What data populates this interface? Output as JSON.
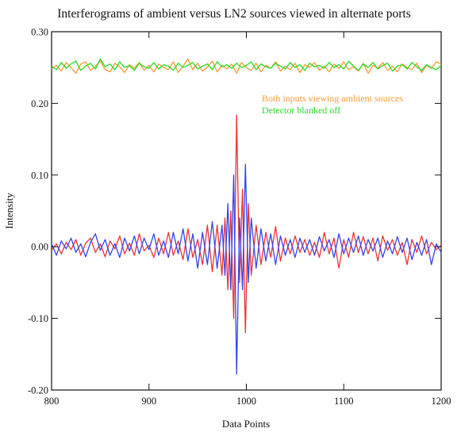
{
  "chart_data": {
    "type": "line",
    "title": "Interferograms of ambient versus LN2 sources viewed in alternate ports",
    "xlabel": "Data Points",
    "ylabel": "Intensity",
    "xlim": [
      800,
      1200
    ],
    "ylim": [
      -0.2,
      0.3
    ],
    "x_ticks": [
      800,
      900,
      1000,
      1100,
      1200
    ],
    "x_tick_labels": [
      "800",
      "900",
      "1000",
      "1100",
      "1200"
    ],
    "y_ticks": [
      -0.2,
      -0.1,
      0.0,
      0.1,
      0.2,
      0.3
    ],
    "y_tick_labels": [
      "-0.20",
      "-0.10",
      "0.00",
      "0.10",
      "0.20",
      "0.30"
    ],
    "grid": false,
    "legend_position": "upper-right",
    "legend": [
      {
        "label": "Both inputs viewing ambient sources",
        "color": "#ff9933"
      },
      {
        "label": "Detector blanked off",
        "color": "#22dd22"
      }
    ],
    "series": [
      {
        "name": "Both inputs viewing ambient sources",
        "color": "#ff9933",
        "x": [
          800,
          805,
          810,
          815,
          820,
          825,
          830,
          835,
          840,
          845,
          850,
          855,
          860,
          865,
          870,
          875,
          880,
          885,
          890,
          895,
          900,
          905,
          910,
          915,
          920,
          925,
          930,
          935,
          940,
          945,
          950,
          955,
          960,
          965,
          970,
          975,
          980,
          985,
          990,
          995,
          1000,
          1005,
          1010,
          1015,
          1020,
          1025,
          1030,
          1035,
          1040,
          1045,
          1050,
          1055,
          1060,
          1065,
          1070,
          1075,
          1080,
          1085,
          1090,
          1095,
          1100,
          1105,
          1110,
          1115,
          1120,
          1125,
          1130,
          1135,
          1140,
          1145,
          1150,
          1155,
          1160,
          1165,
          1170,
          1175,
          1180,
          1185,
          1190,
          1195,
          1200
        ],
        "y": [
          0.248,
          0.253,
          0.245,
          0.257,
          0.25,
          0.242,
          0.255,
          0.258,
          0.246,
          0.252,
          0.259,
          0.247,
          0.244,
          0.256,
          0.251,
          0.243,
          0.254,
          0.249,
          0.257,
          0.246,
          0.253,
          0.244,
          0.255,
          0.25,
          0.247,
          0.258,
          0.243,
          0.252,
          0.262,
          0.247,
          0.256,
          0.245,
          0.251,
          0.259,
          0.244,
          0.253,
          0.248,
          0.255,
          0.242,
          0.257,
          0.25,
          0.246,
          0.256,
          0.244,
          0.253,
          0.249,
          0.258,
          0.245,
          0.252,
          0.247,
          0.256,
          0.243,
          0.254,
          0.25,
          0.257,
          0.246,
          0.252,
          0.244,
          0.255,
          0.249,
          0.258,
          0.247,
          0.251,
          0.245,
          0.256,
          0.242,
          0.253,
          0.249,
          0.257,
          0.246,
          0.252,
          0.244,
          0.255,
          0.25,
          0.247,
          0.256,
          0.243,
          0.253,
          0.249,
          0.258,
          0.255
        ]
      },
      {
        "name": "Detector blanked off",
        "color": "#22dd22",
        "x": [
          800,
          805,
          810,
          815,
          820,
          825,
          830,
          835,
          840,
          845,
          850,
          855,
          860,
          865,
          870,
          875,
          880,
          885,
          890,
          895,
          900,
          905,
          910,
          915,
          920,
          925,
          930,
          935,
          940,
          945,
          950,
          955,
          960,
          965,
          970,
          975,
          980,
          985,
          990,
          995,
          1000,
          1005,
          1010,
          1015,
          1020,
          1025,
          1030,
          1035,
          1040,
          1045,
          1050,
          1055,
          1060,
          1065,
          1070,
          1075,
          1080,
          1085,
          1090,
          1095,
          1100,
          1105,
          1110,
          1115,
          1120,
          1125,
          1130,
          1135,
          1140,
          1145,
          1150,
          1155,
          1160,
          1165,
          1170,
          1175,
          1180,
          1185,
          1190,
          1195,
          1200
        ],
        "y": [
          0.252,
          0.247,
          0.257,
          0.249,
          0.255,
          0.259,
          0.246,
          0.252,
          0.256,
          0.248,
          0.262,
          0.251,
          0.255,
          0.247,
          0.258,
          0.25,
          0.253,
          0.246,
          0.256,
          0.251,
          0.249,
          0.257,
          0.248,
          0.254,
          0.252,
          0.246,
          0.256,
          0.25,
          0.253,
          0.257,
          0.248,
          0.252,
          0.255,
          0.247,
          0.258,
          0.251,
          0.254,
          0.249,
          0.256,
          0.25,
          0.253,
          0.258,
          0.247,
          0.255,
          0.251,
          0.249,
          0.256,
          0.252,
          0.248,
          0.257,
          0.25,
          0.254,
          0.246,
          0.256,
          0.251,
          0.253,
          0.249,
          0.257,
          0.25,
          0.254,
          0.248,
          0.259,
          0.252,
          0.246,
          0.255,
          0.25,
          0.257,
          0.248,
          0.253,
          0.256,
          0.245,
          0.252,
          0.254,
          0.248,
          0.257,
          0.251,
          0.246,
          0.254,
          0.25,
          0.247,
          0.253
        ]
      },
      {
        "name": "",
        "color": "#ee3333",
        "x": [
          800,
          805,
          810,
          815,
          820,
          825,
          830,
          835,
          840,
          845,
          850,
          855,
          860,
          865,
          870,
          875,
          880,
          885,
          890,
          895,
          900,
          905,
          910,
          915,
          920,
          925,
          930,
          935,
          940,
          945,
          950,
          955,
          960,
          965,
          970,
          975,
          978,
          981,
          984,
          987,
          990,
          993,
          996,
          999,
          1002,
          1005,
          1010,
          1015,
          1020,
          1025,
          1030,
          1035,
          1040,
          1045,
          1050,
          1055,
          1060,
          1065,
          1070,
          1075,
          1080,
          1085,
          1090,
          1095,
          1100,
          1105,
          1110,
          1115,
          1120,
          1125,
          1130,
          1135,
          1140,
          1145,
          1150,
          1155,
          1160,
          1165,
          1170,
          1175,
          1180,
          1185,
          1190,
          1195,
          1200
        ],
        "y": [
          -0.005,
          0.004,
          -0.01,
          0.006,
          -0.004,
          0.01,
          -0.012,
          0.005,
          0.012,
          -0.008,
          0.004,
          -0.014,
          0.008,
          -0.003,
          0.015,
          -0.01,
          0.005,
          -0.012,
          0.018,
          -0.006,
          0.002,
          -0.015,
          0.012,
          -0.01,
          0.02,
          -0.012,
          0.008,
          -0.018,
          0.025,
          -0.015,
          0.01,
          -0.025,
          0.03,
          -0.035,
          0.03,
          -0.04,
          0.04,
          -0.06,
          0.05,
          -0.1,
          0.184,
          -0.05,
          0.08,
          -0.12,
          0.06,
          -0.04,
          0.03,
          -0.025,
          0.02,
          -0.015,
          0.028,
          -0.02,
          0.012,
          -0.01,
          0.015,
          -0.008,
          0.01,
          -0.012,
          0.006,
          -0.015,
          0.02,
          -0.01,
          0.012,
          -0.03,
          0.01,
          -0.015,
          0.02,
          -0.008,
          0.014,
          -0.01,
          0.012,
          -0.02,
          0.015,
          -0.005,
          0.01,
          -0.012,
          0.006,
          -0.025,
          0.01,
          -0.008,
          0.015,
          -0.01,
          0.006,
          -0.004,
          0.002
        ]
      },
      {
        "name": "",
        "color": "#3344ee",
        "x": [
          800,
          805,
          810,
          815,
          820,
          825,
          830,
          835,
          840,
          845,
          850,
          855,
          860,
          865,
          870,
          875,
          880,
          885,
          890,
          895,
          900,
          905,
          910,
          915,
          920,
          925,
          930,
          935,
          940,
          945,
          950,
          955,
          960,
          965,
          970,
          975,
          978,
          981,
          984,
          987,
          990,
          993,
          996,
          999,
          1002,
          1005,
          1010,
          1015,
          1020,
          1025,
          1030,
          1035,
          1040,
          1045,
          1050,
          1055,
          1060,
          1065,
          1070,
          1075,
          1080,
          1085,
          1090,
          1095,
          1100,
          1105,
          1110,
          1115,
          1120,
          1125,
          1130,
          1135,
          1140,
          1145,
          1150,
          1155,
          1160,
          1165,
          1170,
          1175,
          1180,
          1185,
          1190,
          1195,
          1200
        ],
        "y": [
          0.004,
          -0.012,
          0.008,
          -0.003,
          0.012,
          -0.008,
          0.004,
          -0.014,
          0.006,
          0.018,
          -0.005,
          0.01,
          -0.012,
          0.004,
          -0.015,
          0.012,
          -0.006,
          0.015,
          -0.01,
          0.012,
          -0.004,
          0.018,
          -0.012,
          0.008,
          -0.015,
          0.02,
          -0.01,
          0.025,
          -0.02,
          0.018,
          -0.03,
          0.02,
          -0.025,
          0.035,
          -0.03,
          0.03,
          -0.04,
          0.06,
          -0.06,
          0.1,
          -0.178,
          0.04,
          -0.06,
          0.115,
          -0.05,
          0.04,
          -0.03,
          0.025,
          -0.02,
          0.018,
          -0.025,
          0.015,
          -0.012,
          0.01,
          -0.015,
          0.012,
          -0.008,
          0.01,
          -0.012,
          0.014,
          -0.006,
          0.01,
          -0.015,
          0.018,
          -0.01,
          0.012,
          -0.008,
          0.015,
          -0.012,
          0.01,
          -0.006,
          0.012,
          -0.015,
          0.008,
          -0.01,
          0.014,
          -0.008,
          0.012,
          -0.018,
          0.006,
          -0.012,
          0.01,
          -0.025,
          0.004,
          -0.008
        ]
      }
    ]
  }
}
